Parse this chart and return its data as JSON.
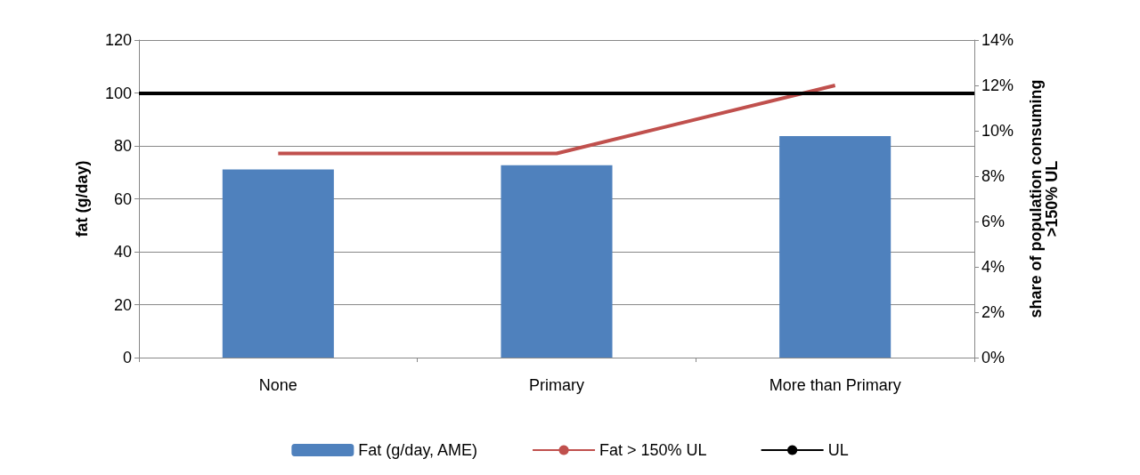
{
  "chart_data": {
    "type": "bar",
    "ylabel": "fat (g/day)",
    "y2label": "share of population consuming\n>150% UL",
    "categories": [
      "None",
      "Primary",
      "More than Primary"
    ],
    "series": [
      {
        "name": "Fat (g/day, AME)",
        "color": "#4f81bd",
        "values": [
          71.1,
          72.7,
          83.7
        ]
      },
      {
        "name": "Fat > 150% UL",
        "color": "#c0504d",
        "type": "line",
        "axis": "y2",
        "values": [
          9.0,
          9.0,
          12.0
        ]
      }
    ],
    "ylim": [
      0,
      120
    ],
    "yticks": [
      0,
      20,
      40,
      60,
      80,
      100,
      120
    ],
    "y2lim": [
      0,
      14
    ],
    "y2ticks": [
      {
        "value": 0,
        "label": "0%"
      },
      {
        "value": 2,
        "label": "2%"
      },
      {
        "value": 4,
        "label": "4%"
      },
      {
        "value": 6,
        "label": "6%"
      },
      {
        "value": 8,
        "label": "8%"
      },
      {
        "value": 10,
        "label": "10%"
      },
      {
        "value": 12,
        "label": "12%"
      },
      {
        "value": 14,
        "label": "14%"
      }
    ],
    "ref_lines": [
      {
        "axis": "y",
        "value": 100,
        "label": "UL",
        "color": "#000000"
      }
    ],
    "grid": "y",
    "legend": "bottom",
    "marker": "none",
    "line_style": "solid"
  }
}
